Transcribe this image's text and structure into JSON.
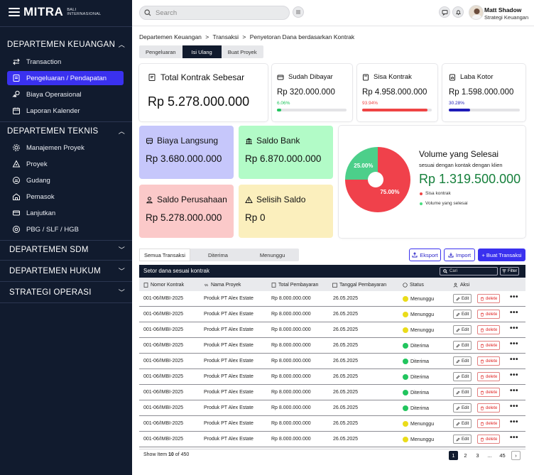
{
  "brand": {
    "name": "MITRA",
    "sub1": "BALI",
    "sub2": "INTERNASIONAL"
  },
  "sidebar": {
    "sections": [
      {
        "title": "DEPARTEMEN KEUANGAN",
        "expanded": true,
        "items": [
          {
            "label": "Transaction",
            "icon": "transfer-icon"
          },
          {
            "label": "Pengeluaran / Pendapatan",
            "icon": "receipt-icon",
            "active": true
          },
          {
            "label": "Biaya Operasional",
            "icon": "coins-icon"
          },
          {
            "label": "Laporan Kalender",
            "icon": "calendar-icon"
          }
        ]
      },
      {
        "title": "DEPARTEMEN TEKNIS",
        "expanded": true,
        "items": [
          {
            "label": "Manajemen Proyek",
            "icon": "gear-icon"
          },
          {
            "label": "Proyek",
            "icon": "compass-icon"
          },
          {
            "label": "Gudang",
            "icon": "warehouse-icon"
          },
          {
            "label": "Pemasok",
            "icon": "supplier-icon"
          },
          {
            "label": "Lanjutkan",
            "icon": "card-icon"
          },
          {
            "label": "PBG / SLF / HGB",
            "icon": "certificate-icon"
          }
        ]
      },
      {
        "title": "DEPARTEMEN SDM",
        "expanded": false
      },
      {
        "title": "DEPARTEMEN HUKUM",
        "expanded": false
      },
      {
        "title": "STRATEGI OPERASI",
        "expanded": false
      }
    ]
  },
  "topbar": {
    "search_placeholder": "Search",
    "user_name": "Matt Shadow",
    "user_role": "Strategi Keuangan"
  },
  "breadcrumb": {
    "items": [
      "Departemen Keuangan",
      "Transaksi",
      "Penyetoran Dana berdasarkan Kontrak"
    ],
    "separator": ">"
  },
  "tabs": [
    {
      "label": "Pengeluaran"
    },
    {
      "label": "Isi Ulang",
      "active": true
    },
    {
      "label": "Buat Proyek"
    }
  ],
  "total_card": {
    "title": "Total Kontrak Sebesar",
    "value": "Rp 5.278.000.000"
  },
  "stat_cards": [
    {
      "title": "Sudah Dibayar",
      "value": "Rp 320.000.000",
      "percent": "6.06%",
      "progress": 0.0606,
      "color": "#22c55e"
    },
    {
      "title": "Sisa Kontrak",
      "value": "Rp 4.958.000.000",
      "percent": "93.94%",
      "progress": 0.9394,
      "color": "#ef4444"
    },
    {
      "title": "Laba Kotor",
      "value": "Rp 1.598.000.000",
      "percent": "30.28%",
      "progress": 0.3028,
      "color": "#1e1bb8"
    }
  ],
  "color_cards": [
    {
      "title": "Biaya Langsung",
      "value": "Rp 3.680.000.000",
      "bg": "#c6c7fb"
    },
    {
      "title": "Saldo Bank",
      "value": "Rp 6.870.000.000",
      "bg": "#b2fbc7"
    },
    {
      "title": "Saldo Perusahaan",
      "value": "Rp 5.278.000.000",
      "bg": "#fbc9c9"
    },
    {
      "title": "Selisih Saldo",
      "value": "Rp 0",
      "bg": "#fbefbd"
    }
  ],
  "volume": {
    "title": "Volume yang Selesai",
    "subtitle": "sesuai dengan kontak dengan klien",
    "value": "Rp 1.319.500.000",
    "legend": [
      {
        "label": "Sisa kontrak",
        "color": "#ef4444"
      },
      {
        "label": "Volume yang selesai",
        "color": "#4ade80"
      }
    ]
  },
  "chart_data": {
    "type": "pie",
    "categories": [
      "Sisa kontrak",
      "Volume yang selesai"
    ],
    "values": [
      75,
      25
    ],
    "labels": [
      "75.00%",
      "25.00%"
    ],
    "colors": [
      "#f0414b",
      "#4ccf8a"
    ]
  },
  "table_tabs": [
    {
      "label": "Semua Transaksi",
      "active": true
    },
    {
      "label": "Diterima"
    },
    {
      "label": "Menunggu"
    }
  ],
  "actions": {
    "export": "Eksport",
    "import": "Import",
    "create": "+ Buat Transaksi"
  },
  "table": {
    "title": "Setor dana sesuai kontrak",
    "search_placeholder": "Cari",
    "filter_label": "Filter",
    "columns": [
      "Nomor Kontrak",
      "Nama Proyek",
      "Total Pembayaran",
      "Tanggal Pembayaran",
      "Status",
      "Aksi"
    ],
    "edit_label": "Edit",
    "delete_label": "delete",
    "status_colors": {
      "Menunggu": "#eadc1a",
      "Diterima": "#22c55e"
    },
    "rows": [
      {
        "contract": "001-06/IMBI-2025",
        "project": "Produk PT Alex Estate",
        "amount": "Rp 8.000.000.000",
        "date": "26.05.2025",
        "status": "Menunggu"
      },
      {
        "contract": "001-06/IMBI-2025",
        "project": "Produk PT Alex Estate",
        "amount": "Rp 8.000.000.000",
        "date": "26.05.2025",
        "status": "Menunggu"
      },
      {
        "contract": "001-06/IMBI-2025",
        "project": "Produk PT Alex Estate",
        "amount": "Rp 8.000.000.000",
        "date": "26.05.2025",
        "status": "Menunggu"
      },
      {
        "contract": "001-06/IMBI-2025",
        "project": "Produk PT Alex Estate",
        "amount": "Rp 8.000.000.000",
        "date": "26.05.2025",
        "status": "Diterima"
      },
      {
        "contract": "001-06/IMBI-2025",
        "project": "Produk PT Alex Estate",
        "amount": "Rp 8.000.000.000",
        "date": "26.05.2025",
        "status": "Diterima"
      },
      {
        "contract": "001-06/IMBI-2025",
        "project": "Produk PT Alex Estate",
        "amount": "Rp 8.000.000.000",
        "date": "26.05.2025",
        "status": "Diterima"
      },
      {
        "contract": "001-06/IMBI-2025",
        "project": "Produk PT Alex Estate",
        "amount": "Rp 8.000.000.000",
        "date": "26.05.2025",
        "status": "Diterima"
      },
      {
        "contract": "001-06/IMBI-2025",
        "project": "Produk PT Alex Estate",
        "amount": "Rp 8.000.000.000",
        "date": "26.05.2025",
        "status": "Diterima"
      },
      {
        "contract": "001-06/IMBI-2025",
        "project": "Produk PT Alex Estate",
        "amount": "Rp 8.000.000.000",
        "date": "26.05.2025",
        "status": "Menunggu"
      },
      {
        "contract": "001-06/IMBI-2025",
        "project": "Produk PT Alex Estate",
        "amount": "Rp 8.000.000.000",
        "date": "26.05.2025",
        "status": "Menunggu"
      }
    ]
  },
  "footer": {
    "show_label": "Show Item",
    "shown": "10",
    "of_label": "of 450",
    "pages": [
      "1",
      "2",
      "3",
      "...",
      "45"
    ],
    "current_page": "1"
  }
}
